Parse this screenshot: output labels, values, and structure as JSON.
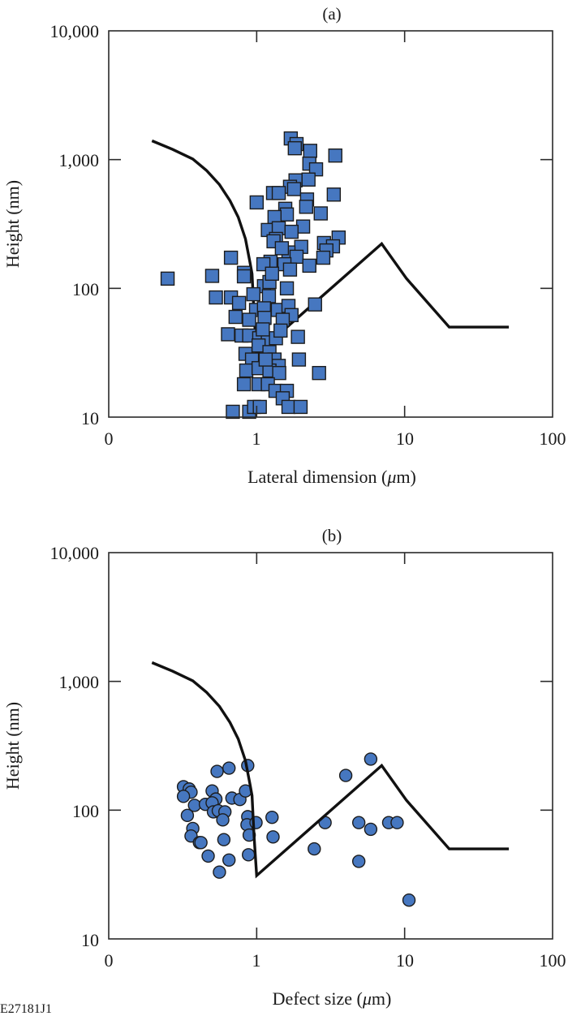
{
  "figure_id": "E27181J1",
  "colors": {
    "marker_fill": "#4677c0",
    "marker_edge": "#1c1c1c",
    "line": "#111111"
  },
  "chart_data": [
    {
      "type": "scatter",
      "panel_label": "(a)",
      "xlabel_pre": "Lateral dimension (",
      "xlabel_mu": "μ",
      "xlabel_post": "m)",
      "ylabel": "Height (nm)",
      "xscale": "log",
      "yscale": "log",
      "xlim": [
        0.1,
        100
      ],
      "ylim": [
        10,
        10000
      ],
      "xticks": [
        {
          "value": 0.1,
          "label": "0"
        },
        {
          "value": 1,
          "label": "1"
        },
        {
          "value": 10,
          "label": "10"
        },
        {
          "value": 100,
          "label": "100"
        }
      ],
      "yticks": [
        {
          "value": 10,
          "label": "10"
        },
        {
          "value": 100,
          "label": "100"
        },
        {
          "value": 1000,
          "label": "1,000"
        },
        {
          "value": 10000,
          "label": "10,000"
        }
      ],
      "grid": false,
      "marker": "square",
      "series": [
        {
          "name": "measured defects",
          "points": [
            [
              1.7,
              1460
            ],
            [
              1.86,
              1320
            ],
            [
              1.81,
              1225
            ],
            [
              2.3,
              1170
            ],
            [
              3.4,
              1075
            ],
            [
              2.27,
              930
            ],
            [
              2.52,
              840
            ],
            [
              2.24,
              700
            ],
            [
              1.83,
              690
            ],
            [
              1.68,
              615
            ],
            [
              1.79,
              590
            ],
            [
              1.29,
              550
            ],
            [
              1.41,
              550
            ],
            [
              2.19,
              490
            ],
            [
              3.32,
              535
            ],
            [
              1.0,
              465
            ],
            [
              2.16,
              430
            ],
            [
              1.56,
              415
            ],
            [
              1.6,
              375
            ],
            [
              2.71,
              382
            ],
            [
              1.32,
              358
            ],
            [
              1.19,
              284
            ],
            [
              1.41,
              293
            ],
            [
              2.06,
              302
            ],
            [
              1.72,
              275
            ],
            [
              3.58,
              248
            ],
            [
              2.85,
              225
            ],
            [
              3.28,
              212
            ],
            [
              2.96,
              197
            ],
            [
              2.82,
              173
            ],
            [
              2.0,
              210
            ],
            [
              1.64,
              190
            ],
            [
              1.86,
              176
            ],
            [
              2.27,
              150
            ],
            [
              1.35,
              242
            ],
            [
              1.3,
              232
            ],
            [
              0.67,
              173
            ],
            [
              1.24,
              161
            ],
            [
              1.11,
              154
            ],
            [
              1.54,
              154
            ],
            [
              0.82,
              132
            ],
            [
              0.5,
              125
            ],
            [
              0.82,
              124
            ],
            [
              1.12,
              104
            ],
            [
              1.22,
              112
            ],
            [
              1.6,
              100
            ],
            [
              0.67,
              85
            ],
            [
              0.76,
              77
            ],
            [
              2.48,
              75
            ],
            [
              1.21,
              87
            ],
            [
              1.39,
              68
            ],
            [
              1.64,
              73
            ],
            [
              1.72,
              62
            ],
            [
              0.99,
              68
            ],
            [
              1.12,
              70
            ],
            [
              0.89,
              57
            ],
            [
              1.13,
              59
            ],
            [
              1.5,
              57
            ],
            [
              0.79,
              43
            ],
            [
              0.89,
              43
            ],
            [
              1.04,
              41
            ],
            [
              1.19,
              40
            ],
            [
              1.35,
              41
            ],
            [
              1.9,
              42
            ],
            [
              0.84,
              31
            ],
            [
              1.03,
              36
            ],
            [
              1.22,
              32
            ],
            [
              1.32,
              28
            ],
            [
              0.93,
              28
            ],
            [
              1.41,
              25
            ],
            [
              1.93,
              28
            ],
            [
              0.85,
              23
            ],
            [
              1.03,
              24
            ],
            [
              1.22,
              23
            ],
            [
              1.42,
              22
            ],
            [
              2.64,
              22
            ],
            [
              0.82,
              18
            ],
            [
              1.03,
              18
            ],
            [
              1.19,
              18
            ],
            [
              1.34,
              16
            ],
            [
              1.6,
              16
            ],
            [
              1.5,
              14
            ],
            [
              1.64,
              12
            ],
            [
              1.98,
              12
            ],
            [
              0.69,
              11
            ],
            [
              0.89,
              11
            ],
            [
              0.96,
              12
            ],
            [
              1.05,
              12
            ],
            [
              0.25,
              119
            ],
            [
              0.64,
              44
            ],
            [
              0.53,
              85
            ],
            [
              0.72,
              60
            ],
            [
              1.1,
              48
            ],
            [
              1.45,
              47
            ],
            [
              1.27,
              130
            ],
            [
              1.48,
              205
            ],
            [
              1.68,
              140
            ],
            [
              0.95,
              90
            ],
            [
              1.15,
              28
            ]
          ]
        },
        {
          "name": "model curve",
          "style": "line",
          "points": [
            [
              0.196,
              1400
            ],
            [
              0.27,
              1200
            ],
            [
              0.37,
              1010
            ],
            [
              0.46,
              820
            ],
            [
              0.56,
              640
            ],
            [
              0.66,
              480
            ],
            [
              0.75,
              357
            ],
            [
              0.84,
              242
            ],
            [
              0.9,
              160
            ],
            [
              0.93,
              130
            ],
            [
              0.96,
              63
            ],
            [
              1.0,
              31
            ],
            [
              7.0,
              222
            ],
            [
              10.3,
              119
            ],
            [
              20,
              50
            ],
            [
              50.6,
              50
            ]
          ]
        }
      ]
    },
    {
      "type": "scatter",
      "panel_label": "(b)",
      "xlabel_pre": "Defect size (",
      "xlabel_mu": "μ",
      "xlabel_post": "m)",
      "ylabel": "Height (nm)",
      "xscale": "log",
      "yscale": "log",
      "xlim": [
        0.1,
        100
      ],
      "ylim": [
        10,
        10000
      ],
      "xticks": [
        {
          "value": 0.1,
          "label": "0"
        },
        {
          "value": 1,
          "label": "1"
        },
        {
          "value": 10,
          "label": "10"
        },
        {
          "value": 100,
          "label": "100"
        }
      ],
      "yticks": [
        {
          "value": 10,
          "label": "10"
        },
        {
          "value": 100,
          "label": "100"
        },
        {
          "value": 1000,
          "label": "1,000"
        },
        {
          "value": 10000,
          "label": "10,000"
        }
      ],
      "grid": false,
      "marker": "circle",
      "series": [
        {
          "name": "measured defects",
          "points": [
            [
              0.54,
              200
            ],
            [
              0.65,
              212
            ],
            [
              0.87,
              222
            ],
            [
              0.32,
              152
            ],
            [
              0.35,
              146
            ],
            [
              0.36,
              138
            ],
            [
              0.32,
              128
            ],
            [
              0.5,
              141
            ],
            [
              0.53,
              122
            ],
            [
              0.68,
              124
            ],
            [
              0.77,
              121
            ],
            [
              0.84,
              141
            ],
            [
              0.38,
              109
            ],
            [
              0.45,
              111
            ],
            [
              0.5,
              114
            ],
            [
              0.51,
              97
            ],
            [
              0.55,
              99
            ],
            [
              0.61,
              97
            ],
            [
              0.59,
              84
            ],
            [
              0.34,
              91
            ],
            [
              0.87,
              89
            ],
            [
              0.86,
              77
            ],
            [
              0.99,
              80
            ],
            [
              0.37,
              72
            ],
            [
              0.36,
              63
            ],
            [
              0.41,
              56
            ],
            [
              0.42,
              56
            ],
            [
              0.6,
              59
            ],
            [
              0.89,
              64
            ],
            [
              0.47,
              44
            ],
            [
              0.65,
              41
            ],
            [
              0.88,
              45
            ],
            [
              0.56,
              33
            ],
            [
              1.27,
              88
            ],
            [
              1.29,
              62
            ],
            [
              5.9,
              249
            ],
            [
              4.0,
              186
            ],
            [
              2.9,
              80
            ],
            [
              4.9,
              80
            ],
            [
              5.9,
              71
            ],
            [
              7.8,
              80
            ],
            [
              8.9,
              80
            ],
            [
              2.45,
              50
            ],
            [
              4.9,
              40
            ],
            [
              10.7,
              20
            ]
          ]
        },
        {
          "name": "model curve",
          "style": "line",
          "points": [
            [
              0.196,
              1400
            ],
            [
              0.27,
              1200
            ],
            [
              0.37,
              1010
            ],
            [
              0.46,
              820
            ],
            [
              0.56,
              640
            ],
            [
              0.66,
              480
            ],
            [
              0.75,
              357
            ],
            [
              0.84,
              242
            ],
            [
              0.9,
              160
            ],
            [
              0.93,
              130
            ],
            [
              0.96,
              63
            ],
            [
              1.0,
              31
            ],
            [
              7.0,
              222
            ],
            [
              10.3,
              119
            ],
            [
              20,
              50
            ],
            [
              50.6,
              50
            ]
          ]
        }
      ]
    }
  ]
}
